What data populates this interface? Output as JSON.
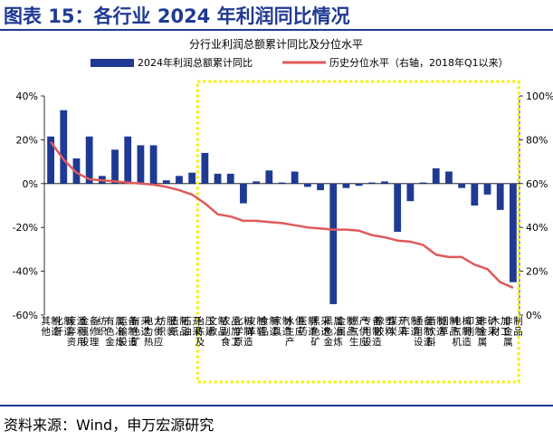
{
  "header": {
    "title": "图表 15：各行业 2024 年利润同比情况"
  },
  "source": "资料来源：Wind，申万宏源研究",
  "colors": {
    "bar": "#1f3a93",
    "line": "#e05a5a",
    "highlight": "#f2f200",
    "title": "#1f3a93"
  },
  "chart_data": {
    "type": "bar",
    "title": "分行业利润总额累计同比及分位水平",
    "legend": {
      "placement": "top"
    },
    "categories": [
      "其他制造",
      "化纤制造",
      "废弃资源利用",
      "金属设备修理",
      "纺织",
      "有色金属冶炼",
      "运输设备制造",
      "有色矿采选",
      "电力热力供应",
      "纺织服装",
      "造纸制品",
      "石油开采",
      "冶炼及压延",
      "文教制品",
      "农副食品加工",
      "化学原料制造",
      "皮革制鞋",
      "食品制造",
      "家具制造",
      "水生产供应",
      "医药制造",
      "黑色矿采选",
      "黑色金属冶炼",
      "金属制品",
      "燃气生产供应",
      "专用设备制造",
      "橡胶塑料",
      "煤炭开采",
      "汽车制造",
      "通用设备制造",
      "酒饮料制造",
      "烟草制品",
      "电气机械制造",
      "印刷复制",
      "非金属矿采",
      "木材加工",
      "非金属制品"
    ],
    "tick_labels": [
      "其他制造",
      "化纤制造",
      "废弃资源利用",
      "金属设备修理",
      "纺织",
      "有色金属冶炼",
      "运输设备制造",
      "有色矿采选",
      "电力热力供应",
      "纺织服装",
      "造纸制品",
      "石油开采",
      "冶炼及压延",
      "文教制品",
      "农副食品加工",
      "化学原料制造",
      "皮革制鞋",
      "食品制造",
      "家具制造",
      "水生产供应",
      "医药制造",
      "黑色矿采选",
      "黑色金属冶炼",
      "金属制品",
      "燃气生产供应",
      "专用设备制造",
      "橡胶塑料",
      "煤炭开采",
      "汽车制造",
      "通用设备制造",
      "酒饮料制造",
      "烟草制品",
      "电气机械制造",
      "印刷复制",
      "非金属矿采",
      "木材加工",
      "非金属制品"
    ],
    "series": [
      {
        "name": "2024年利润总额累计同比",
        "type": "bar",
        "axis": "left",
        "values": [
          21.5,
          33.5,
          11.5,
          21.5,
          3.5,
          15.5,
          21.5,
          17.5,
          17.5,
          1.5,
          3.5,
          5.0,
          14.0,
          4.5,
          4.5,
          -9.0,
          1.0,
          6.0,
          0.5,
          5.5,
          -1.5,
          -3.0,
          -55.0,
          -2.0,
          -1.0,
          0.5,
          1.0,
          -22.0,
          -8.0,
          0.5,
          7.0,
          5.5,
          -2.0,
          -10.0,
          -5.0,
          -12.0,
          -45.0
        ]
      },
      {
        "name": "历史分位水平（右轴，2018年Q1以来）",
        "type": "line",
        "axis": "right",
        "values": [
          79,
          71,
          65,
          62,
          61.5,
          61,
          60.5,
          60,
          59.5,
          58.5,
          57,
          55,
          51,
          46,
          45,
          43,
          43,
          42.5,
          42,
          41,
          40,
          39.5,
          39,
          39,
          38.5,
          36.5,
          35.5,
          34,
          33.5,
          32,
          27.5,
          26.5,
          26.5,
          23,
          21,
          15,
          12.5
        ]
      }
    ],
    "left_axis": {
      "min": -60,
      "max": 40,
      "ticks": [
        40,
        20,
        0,
        -20,
        -40,
        -60
      ],
      "tick_labels": [
        "40%",
        "20%",
        "0%",
        "-20%",
        "-40%",
        "-60%"
      ]
    },
    "right_axis": {
      "min": 0,
      "max": 100,
      "ticks": [
        100,
        80,
        60,
        40,
        20,
        0
      ],
      "tick_labels": [
        "100%",
        "80%",
        "60%",
        "40%",
        "20%",
        "0%"
      ]
    },
    "grid": false,
    "highlight": {
      "from_index": 12,
      "to_index": 36,
      "style": "dotted-box"
    }
  }
}
